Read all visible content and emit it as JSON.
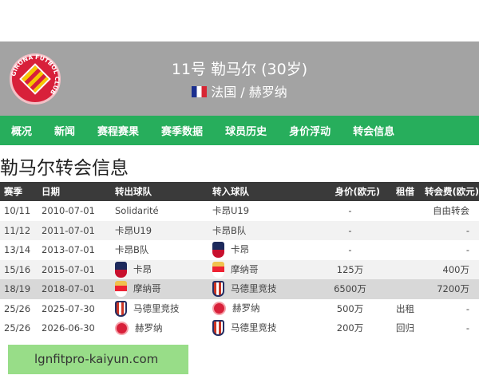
{
  "header": {
    "club_logo_text": "GIRONA FUTBOL CLUB",
    "title": "11号 勒马尔 (30岁)",
    "subtitle": "法国 / 赫罗纳",
    "flag": "france-flag"
  },
  "nav": [
    "概况",
    "新闻",
    "赛程赛果",
    "赛季数据",
    "球员历史",
    "身价浮动",
    "转会信息"
  ],
  "page_title": "勒马尔转会信息",
  "table": {
    "columns": [
      "赛季",
      "日期",
      "转出球队",
      "转入球队",
      "身价(欧元)",
      "租借",
      "转会费(欧元)"
    ],
    "rows": [
      {
        "season": "10/11",
        "date": "2010-07-01",
        "from": "Solidarité",
        "from_icon": "",
        "to": "卡昂U19",
        "to_icon": "",
        "value": "-",
        "loan": "",
        "fee": "自由转会"
      },
      {
        "season": "11/12",
        "date": "2011-07-01",
        "from": "卡昂U19",
        "from_icon": "",
        "to": "卡昂B队",
        "to_icon": "",
        "value": "-",
        "loan": "",
        "fee": "-"
      },
      {
        "season": "13/14",
        "date": "2013-07-01",
        "from": "卡昂B队",
        "from_icon": "",
        "to": "卡昂",
        "to_icon": "caen",
        "value": "-",
        "loan": "",
        "fee": "-"
      },
      {
        "season": "15/16",
        "date": "2015-07-01",
        "from": "卡昂",
        "from_icon": "caen",
        "to": "摩纳哥",
        "to_icon": "monaco",
        "value": "125万",
        "loan": "",
        "fee": "400万"
      },
      {
        "season": "18/19",
        "date": "2018-07-01",
        "from": "摩纳哥",
        "from_icon": "monaco",
        "to": "马德里竞技",
        "to_icon": "atm",
        "value": "6500万",
        "loan": "",
        "fee": "7200万"
      },
      {
        "season": "25/26",
        "date": "2025-07-30",
        "from": "马德里竞技",
        "from_icon": "atm",
        "to": "赫罗纳",
        "to_icon": "gir",
        "value": "500万",
        "loan": "出租",
        "fee": "-"
      },
      {
        "season": "25/26",
        "date": "2026-06-30",
        "from": "赫罗纳",
        "from_icon": "gir",
        "to": "马德里竞技",
        "to_icon": "atm",
        "value": "200万",
        "loan": "回归",
        "fee": "-"
      }
    ]
  },
  "watermark": "lgnfitpro-kaiyun.com",
  "colors": {
    "header_bg": "#a3a3a3",
    "nav_bg": "#27ae5c",
    "table_header_bg": "#3a3a3a",
    "watermark_bg": "#98dd88"
  }
}
